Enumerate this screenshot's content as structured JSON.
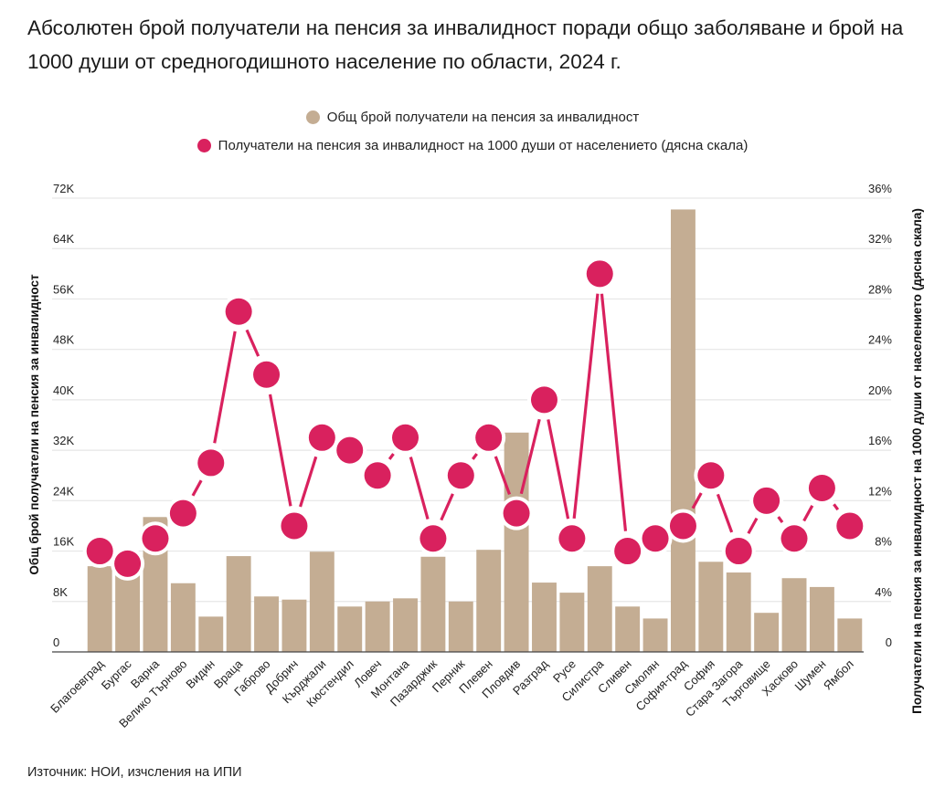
{
  "title": "Абсолютен брой получатели на пенсия за инвалидност поради общо заболяване и брой на 1000 души от средногодишното население по области, 2024 г.",
  "source": "Източник: НОИ, изчсления на ИПИ",
  "colors": {
    "bars": "#C4AD93",
    "line": "#D9215E",
    "grid": "#E6E6E6",
    "axis": "#444444"
  },
  "chart_data": {
    "type": "bar+line",
    "title": "Абсолютен брой получатели на пенсия за инвалидност поради общо заболяване и брой на 1000 души от средногодишното население по области, 2024 г.",
    "ylabel_left": "Общ брой получатели на пенсия за инвалидност",
    "ylabel_right": "Получатели на пенсия за инвалидност на 1000 души от населението (дясна скала)",
    "xlabel": "",
    "legend_position": "top-center",
    "grid": true,
    "ylim_left": [
      0,
      72000
    ],
    "ylim_right": [
      0,
      36
    ],
    "yticks_left": [
      "0",
      "8K",
      "16K",
      "24K",
      "32K",
      "40K",
      "48K",
      "56K",
      "64K",
      "72K"
    ],
    "yticks_right": [
      "0",
      "4%",
      "8%",
      "12%",
      "16%",
      "20%",
      "24%",
      "28%",
      "32%",
      "36%"
    ],
    "categories": [
      "Благоевград",
      "Бургас",
      "Варна",
      "Велико Търново",
      "Видин",
      "Враца",
      "Габрово",
      "Добрич",
      "Кърджали",
      "Кюстендил",
      "Ловеч",
      "Монтана",
      "Пазарджик",
      "Перник",
      "Плевен",
      "Пловдив",
      "Разград",
      "Русе",
      "Силистра",
      "Сливен",
      "Смолян",
      "София-град",
      "София",
      "Стара Загора",
      "Търговище",
      "Хасково",
      "Шумен",
      "Ямбол"
    ],
    "series": [
      {
        "name": "Общ брой получатели на пенсия за инвалидност",
        "type": "bar",
        "axis": "left",
        "values": [
          13600,
          12300,
          21400,
          10900,
          5600,
          15200,
          8800,
          8300,
          15900,
          7200,
          8000,
          8500,
          15100,
          8000,
          16200,
          34800,
          11000,
          9400,
          13600,
          7200,
          5300,
          70200,
          14300,
          12600,
          6200,
          11700,
          10300,
          5300
        ]
      },
      {
        "name": "Получатели на пенсия за инвалидност на 1000 души от населението (дясна скала)",
        "type": "line",
        "axis": "right",
        "values": [
          8,
          7,
          9,
          11,
          15,
          27,
          22,
          10,
          17,
          16,
          14,
          17,
          9,
          14,
          17,
          11,
          20,
          9,
          30,
          8,
          9,
          10,
          14,
          8,
          12,
          9,
          13,
          10
        ]
      }
    ]
  }
}
